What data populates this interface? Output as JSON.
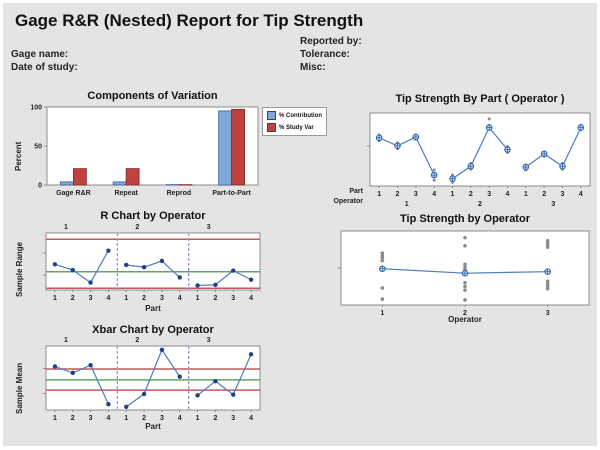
{
  "header": {
    "title": "Gage R&R (Nested) Report for Tip Strength",
    "fields_left": [
      {
        "label": "Gage name:"
      },
      {
        "label": "Date of study:"
      }
    ],
    "fields_right": [
      {
        "label": "Reported by:"
      },
      {
        "label": "Tolerance:"
      },
      {
        "label": "Misc:"
      }
    ]
  },
  "colors": {
    "page_bg": "#e4e4e4",
    "plot_bg": "#ffffff",
    "frame": "#8c8c8c",
    "blue_fill": "#7fa7d8",
    "blue_stroke": "#3a5e96",
    "red_fill": "#c0413d",
    "red_stroke": "#7c2a28",
    "line_blue": "#4f7dbf",
    "point_navy": "#1f3f8f",
    "mean_blue": "#2e64ad",
    "mean_fill": "#ccdcf0",
    "center_green": "#5fa860",
    "limit_red": "#c05b5b",
    "divider_purple": "#a98fd6",
    "gray_dot": "#8c8c8c"
  },
  "chart_data": [
    {
      "id": "components_of_variation",
      "type": "bar",
      "title": "Components of Variation",
      "ylabel": "Percent",
      "ylim": [
        0,
        100
      ],
      "yticks": [
        0,
        50,
        100
      ],
      "grid": false,
      "legend_position": "right",
      "categories": [
        "Gage R&R",
        "Repeat",
        "Reprod",
        "Part-to-Part"
      ],
      "series": [
        {
          "name": "% Contribution",
          "values": [
            4,
            4,
            0.5,
            95
          ]
        },
        {
          "name": "% Study Var",
          "values": [
            21,
            21,
            0.5,
            97
          ]
        }
      ]
    },
    {
      "id": "tip_strength_by_part",
      "type": "line",
      "title": "Tip Strength By Part ( Operator )",
      "xlabel_rows": [
        "Part",
        "Operator"
      ],
      "parts": [
        "1",
        "2",
        "3",
        "4"
      ],
      "operators": [
        "1",
        "2",
        "3"
      ],
      "y_units": "relative",
      "means": [
        0.66,
        0.55,
        0.67,
        0.15,
        0.1,
        0.27,
        0.8,
        0.5,
        0.26,
        0.44,
        0.27,
        0.8
      ],
      "dots": [
        [
          0.7,
          0.66,
          0.62
        ],
        [
          0.59,
          0.55,
          0.51
        ],
        [
          0.7,
          0.67,
          0.64
        ],
        [
          0.22,
          0.15,
          0.08
        ],
        [
          0.15,
          0.1,
          0.05
        ],
        [
          0.31,
          0.27,
          0.23
        ],
        [
          0.92,
          0.83,
          0.78
        ],
        [
          0.54,
          0.5,
          0.46
        ],
        [
          0.29,
          0.26,
          0.22
        ],
        [
          0.47,
          0.44,
          0.41
        ],
        [
          0.31,
          0.27,
          0.23
        ],
        [
          0.83,
          0.8,
          0.77
        ]
      ]
    },
    {
      "id": "r_chart_by_operator",
      "type": "line",
      "title": "R Chart by Operator",
      "ylabel": "Sample Range",
      "xlabel": "Part",
      "parts": [
        "1",
        "2",
        "3",
        "4"
      ],
      "operators": [
        "1",
        "2",
        "3"
      ],
      "y_units": "relative",
      "ucl": 0.89,
      "center": 0.32,
      "lcl": 0.03,
      "values": [
        0.45,
        0.35,
        0.13,
        0.69,
        0.44,
        0.4,
        0.51,
        0.22,
        0.08,
        0.09,
        0.34,
        0.18
      ]
    },
    {
      "id": "tip_strength_by_operator",
      "type": "scatter",
      "title": "Tip Strength by Operator",
      "xlabel": "Operator",
      "categories": [
        "1",
        "2",
        "3"
      ],
      "y_units": "relative",
      "means": [
        0.49,
        0.43,
        0.45
      ],
      "dots": [
        [
          0.7,
          0.67,
          0.64,
          0.6,
          0.23,
          0.08
        ],
        [
          0.91,
          0.8,
          0.55,
          0.51,
          0.48,
          0.45,
          0.3,
          0.25,
          0.2,
          0.07
        ],
        [
          0.87,
          0.84,
          0.81,
          0.78,
          0.32,
          0.28,
          0.25,
          0.22
        ]
      ]
    },
    {
      "id": "xbar_chart_by_operator",
      "type": "line",
      "title": "Xbar Chart by Operator",
      "ylabel": "Sample Mean",
      "xlabel": "Part",
      "parts": [
        "1",
        "2",
        "3",
        "4"
      ],
      "operators": [
        "1",
        "2",
        "3"
      ],
      "y_units": "relative",
      "ucl": 0.64,
      "center": 0.47,
      "lcl": 0.31,
      "values": [
        0.68,
        0.58,
        0.7,
        0.09,
        0.05,
        0.25,
        0.94,
        0.52,
        0.23,
        0.45,
        0.24,
        0.87
      ]
    }
  ]
}
